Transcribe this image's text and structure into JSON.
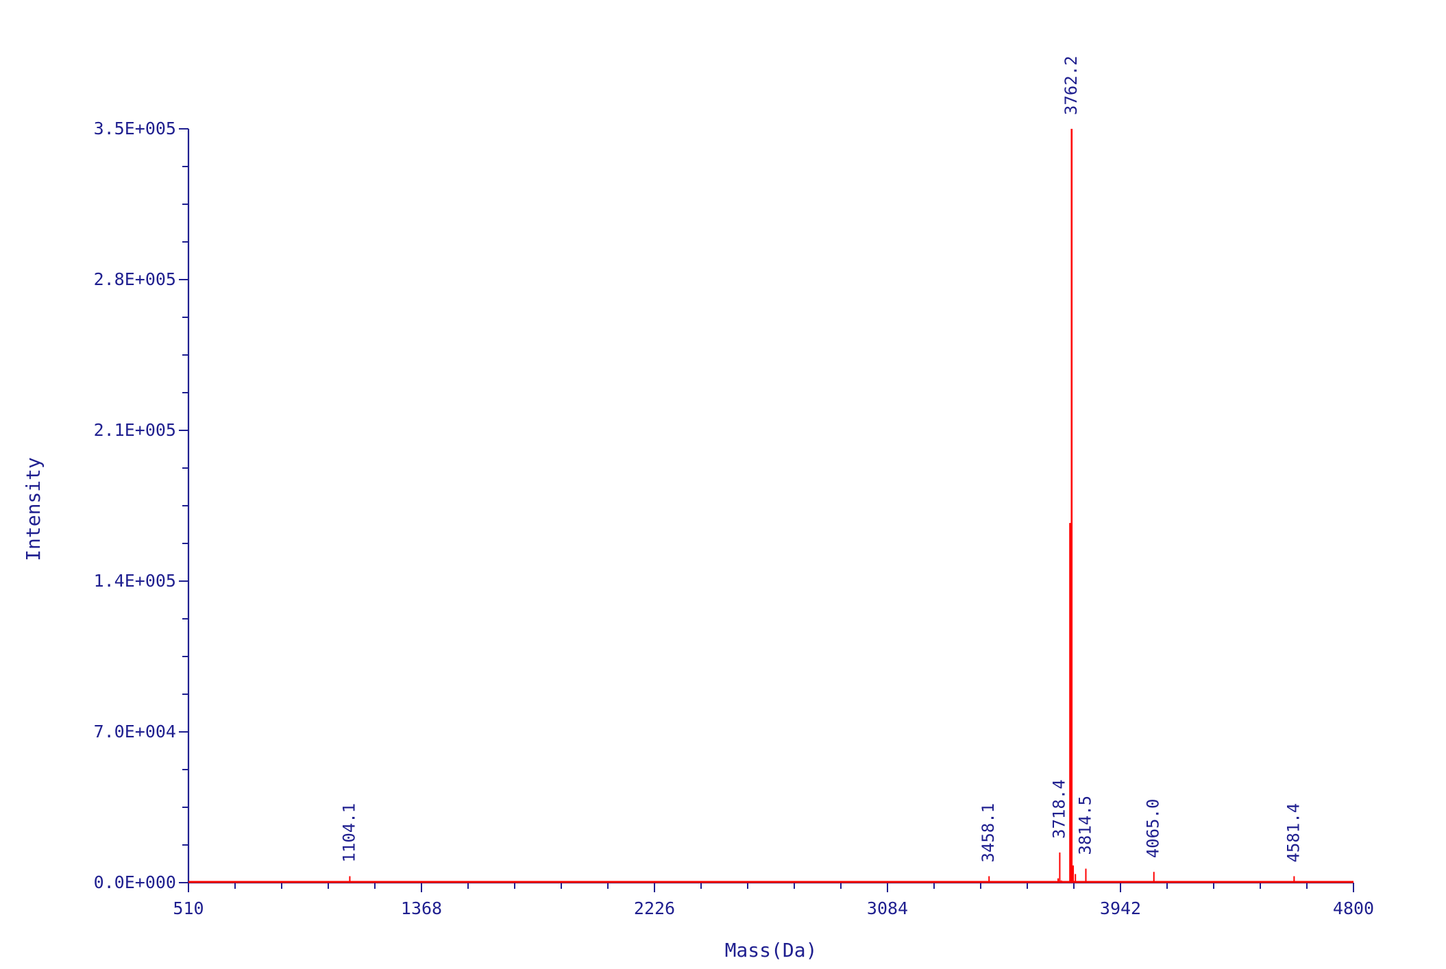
{
  "chart_data": {
    "type": "line",
    "xlabel": "Mass(Da)",
    "ylabel": "Intensity",
    "xlim": [
      510,
      4800
    ],
    "ylim": [
      0,
      350000
    ],
    "x_ticks": [
      510,
      1368,
      2226,
      3084,
      3942,
      4800
    ],
    "x_tick_labels": [
      "510",
      "1368",
      "2226",
      "3084",
      "3942",
      "4800"
    ],
    "y_ticks": [
      0,
      70000,
      140000,
      210000,
      280000,
      350000
    ],
    "y_tick_labels": [
      "0.0E+000",
      "7.0E+004",
      "1.4E+005",
      "2.1E+005",
      "2.8E+005",
      "3.5E+005"
    ],
    "grid": false,
    "series": [
      {
        "color": "#ff0000",
        "points": [
          [
            510,
            0
          ],
          [
            1104.1,
            3000
          ],
          [
            3458.1,
            3000
          ],
          [
            3712.5,
            2000
          ],
          [
            3718.4,
            14000
          ],
          [
            3724.5,
            1000
          ],
          [
            3756.5,
            167000
          ],
          [
            3762.2,
            350000
          ],
          [
            3768,
            8000
          ],
          [
            3776,
            4000
          ],
          [
            3814.5,
            6500
          ],
          [
            4065.0,
            5000
          ],
          [
            4581.4,
            3000
          ],
          [
            4800,
            0
          ]
        ]
      }
    ],
    "peak_labels": [
      {
        "mass": 1104.1,
        "intensity": 3000,
        "text": "1104.1"
      },
      {
        "mass": 3458.1,
        "intensity": 3000,
        "text": "3458.1"
      },
      {
        "mass": 3718.4,
        "intensity": 14000,
        "text": "3718.4"
      },
      {
        "mass": 3762.2,
        "intensity": 350000,
        "text": "3762.2"
      },
      {
        "mass": 3814.5,
        "intensity": 6500,
        "text": "3814.5"
      },
      {
        "mass": 4065.0,
        "intensity": 5000,
        "text": "4065.0"
      },
      {
        "mass": 4581.4,
        "intensity": 3000,
        "text": "4581.4"
      }
    ]
  }
}
